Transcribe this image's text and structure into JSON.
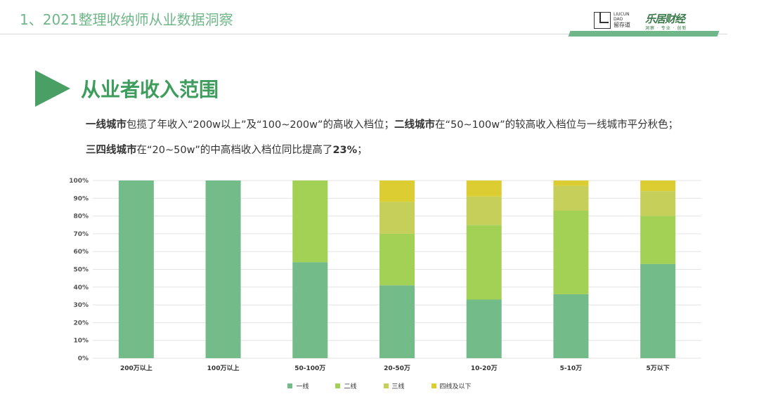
{
  "header": {
    "title": "1、2021整理收纳师从业数据洞察"
  },
  "logos": {
    "liucun": {
      "line1": "LIUCUN",
      "line2": "DAO",
      "cn": "留存道"
    },
    "lejucaijing": {
      "main": "乐居财经",
      "sub": "洞察 · 专业 · 创新"
    }
  },
  "section": {
    "title": "从业者收入范围"
  },
  "description": {
    "line1": [
      {
        "text": "一线城市",
        "bold": true
      },
      {
        "text": "包揽了年收入“200w以上”及“100~200w”的高收入档位；",
        "bold": false
      },
      {
        "text": "二线城市",
        "bold": true
      },
      {
        "text": "在“50~100w”的较高收入档位与一线城市平分秋色；",
        "bold": false
      }
    ],
    "line2": [
      {
        "text": "三四线城市",
        "bold": true
      },
      {
        "text": "在“20~50w”的中高档收入档位同比提高了",
        "bold": false
      },
      {
        "text": "23%",
        "bold": true
      },
      {
        "text": "；",
        "bold": false
      }
    ]
  },
  "chart_data": {
    "type": "bar",
    "stacked": true,
    "categories": [
      "200万以上",
      "100万以上",
      "50-100万",
      "20-50万",
      "10-20万",
      "5-10万",
      "5万以下"
    ],
    "series": [
      {
        "name": "一线",
        "color": "#74bb8a",
        "values": [
          100,
          100,
          54,
          41,
          33,
          36,
          53
        ]
      },
      {
        "name": "二线",
        "color": "#a3d155",
        "values": [
          0,
          0,
          46,
          29,
          42,
          47,
          27
        ]
      },
      {
        "name": "三线",
        "color": "#c5cf5a",
        "values": [
          0,
          0,
          0,
          18,
          16,
          14,
          14
        ]
      },
      {
        "name": "四线及以下",
        "color": "#dccd33",
        "values": [
          0,
          0,
          0,
          12,
          9,
          3,
          6
        ]
      }
    ],
    "y_ticks": [
      "0%",
      "10%",
      "20%",
      "30%",
      "40%",
      "50%",
      "60%",
      "70%",
      "80%",
      "90%",
      "100%"
    ],
    "ylim": [
      0,
      100
    ],
    "grid": true,
    "legend_position": "bottom"
  }
}
